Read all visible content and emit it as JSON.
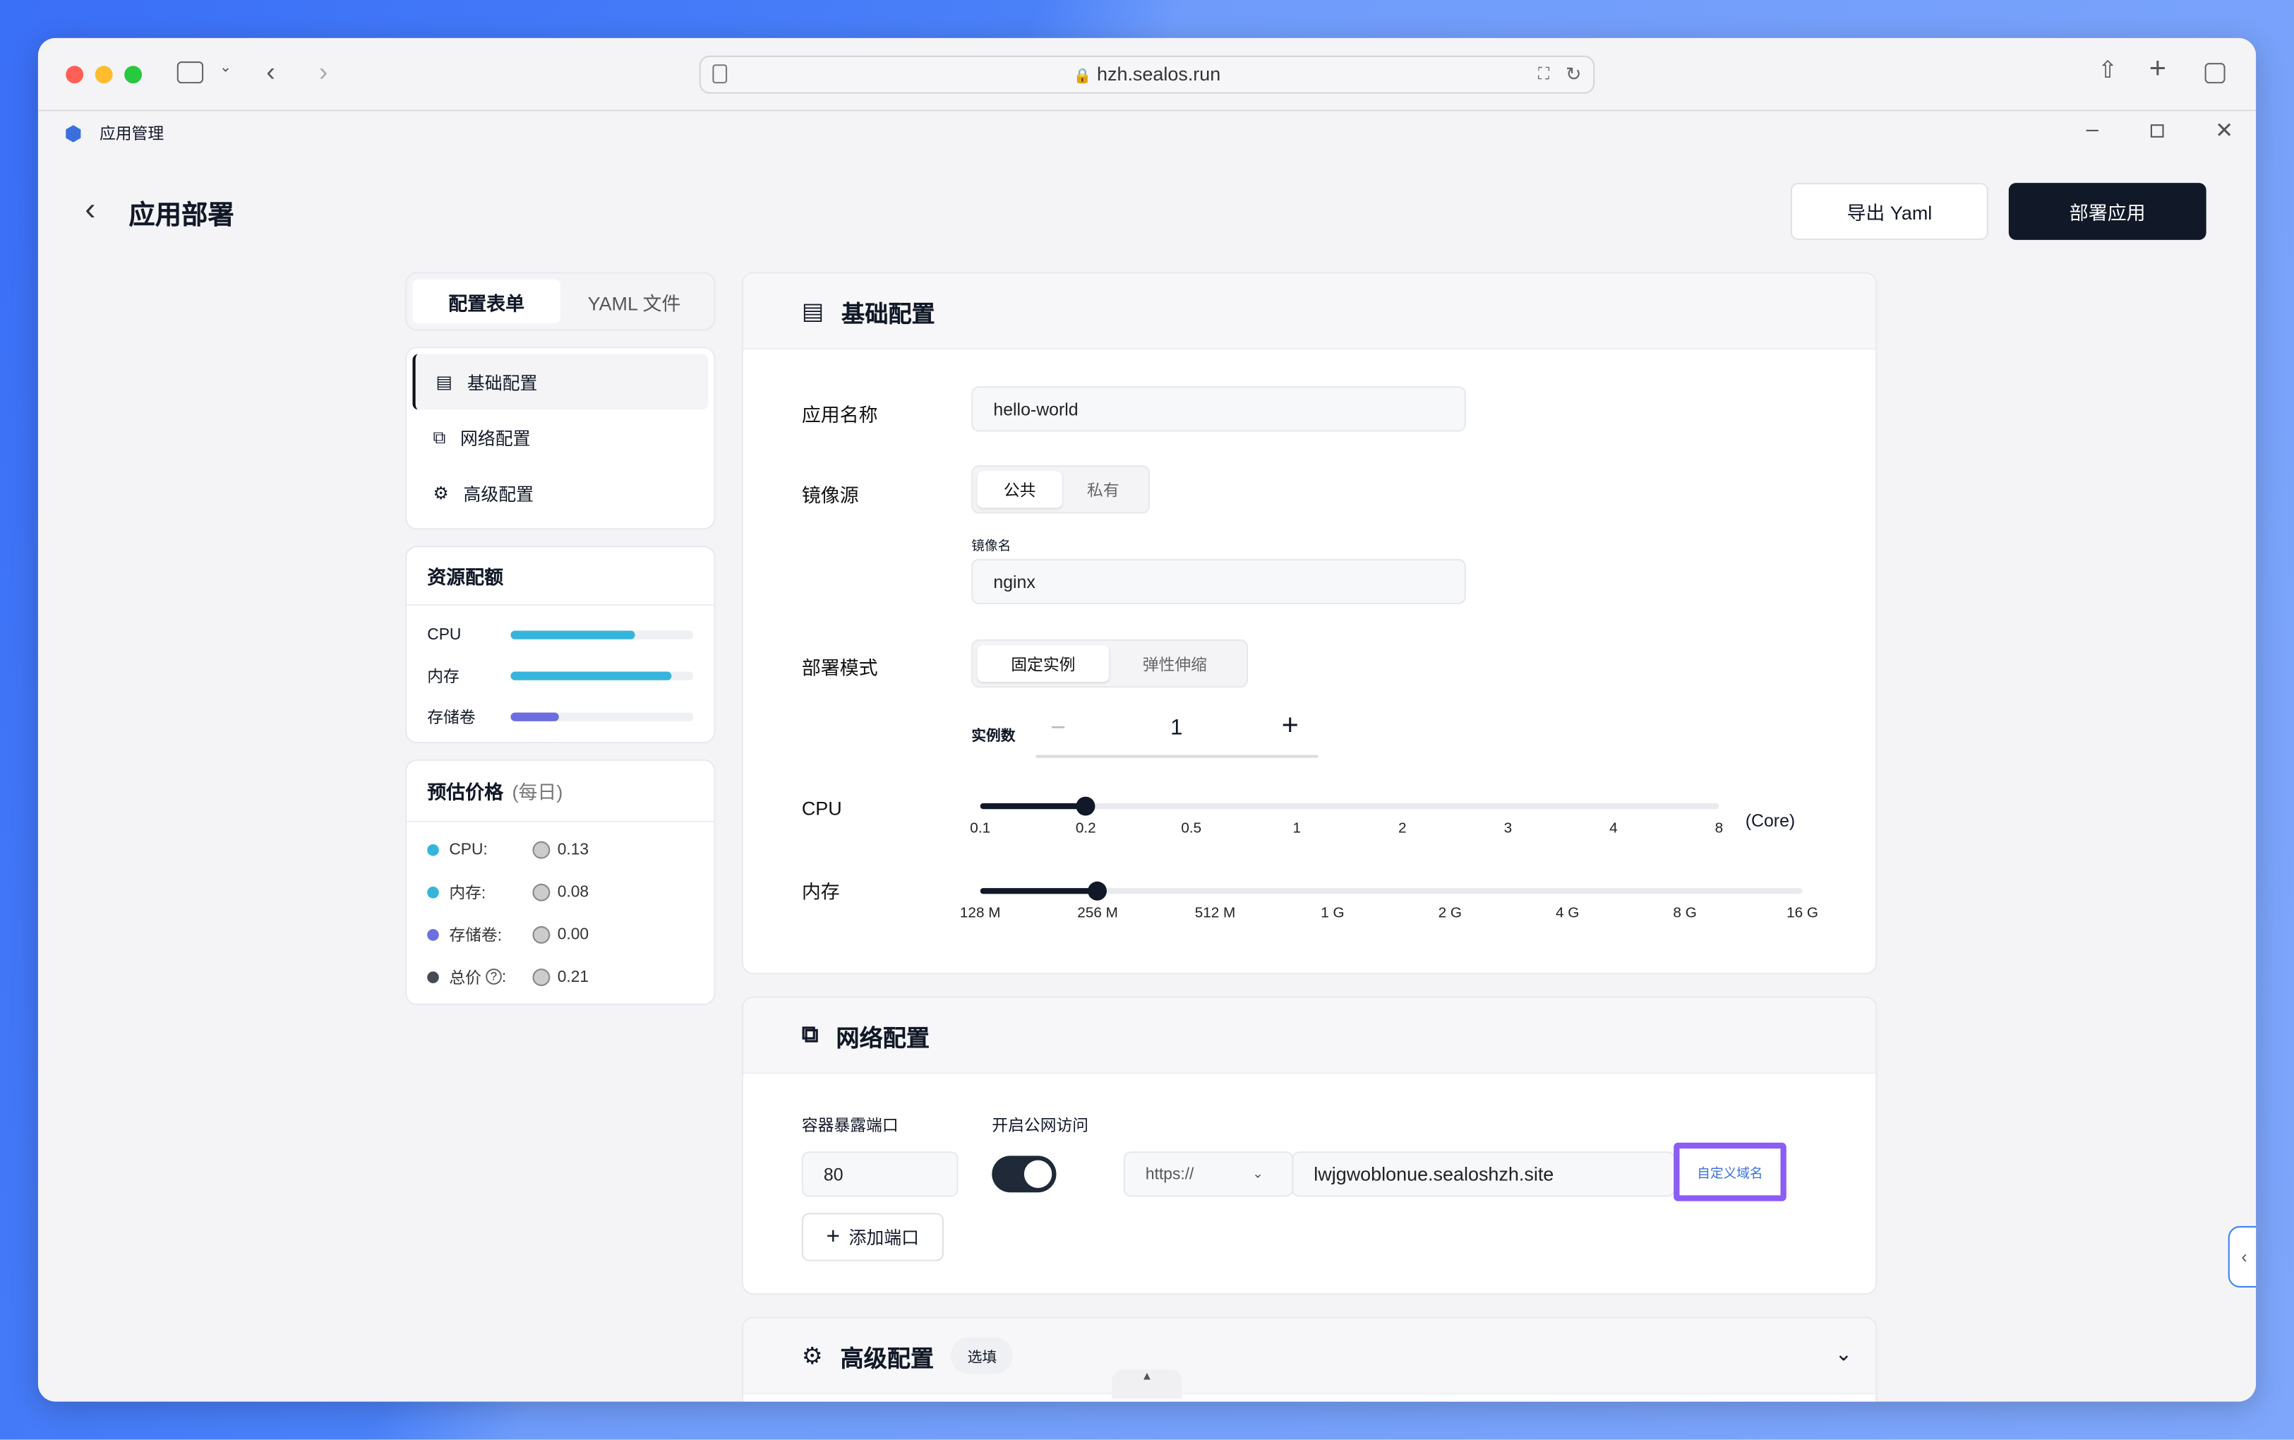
{
  "browser": {
    "url": "hzh.sealos.run",
    "icons": [
      "sidebar-icon",
      "chevron-down-icon",
      "back-icon",
      "forward-icon",
      "page-icon",
      "lock-icon",
      "translate-icon",
      "reload-icon",
      "share-icon",
      "plus-icon",
      "tabs-icon"
    ]
  },
  "app": {
    "title": "应用管理",
    "window_controls": [
      "minimize",
      "restore",
      "close"
    ]
  },
  "header": {
    "title": "应用部署",
    "export_label": "导出 Yaml",
    "deploy_label": "部署应用"
  },
  "left": {
    "tabs": [
      {
        "label": "配置表单",
        "active": true
      },
      {
        "label": "YAML 文件",
        "active": false
      }
    ],
    "nav": [
      {
        "label": "基础配置",
        "icon": "document-icon",
        "active": true
      },
      {
        "label": "网络配置",
        "icon": "network-icon"
      },
      {
        "label": "高级配置",
        "icon": "gear-icon"
      }
    ],
    "quota": {
      "title": "资源配额",
      "items": [
        {
          "label": "CPU",
          "percent": 68,
          "color": "#36b5dc"
        },
        {
          "label": "内存",
          "percent": 88,
          "color": "#36b5dc"
        },
        {
          "label": "存储卷",
          "percent": 26,
          "color": "#6c6ee0"
        }
      ]
    },
    "price": {
      "title": "预估价格",
      "subtitle": "(每日)",
      "items": [
        {
          "label": "CPU:",
          "value": "0.13",
          "color": "#36b5dc"
        },
        {
          "label": "内存:",
          "value": "0.08",
          "color": "#36b5dc"
        },
        {
          "label": "存储卷:",
          "value": "0.00",
          "color": "#6c6ee0"
        },
        {
          "label": "总价",
          "suffix": ":",
          "value": "0.21",
          "color": "#454a55"
        }
      ]
    }
  },
  "basic": {
    "title": "基础配置",
    "app_name_label": "应用名称",
    "app_name": "hello-world",
    "image_label": "镜像源",
    "image_options": [
      "公共",
      "私有"
    ],
    "image_name_label": "镜像名",
    "image_name": "nginx",
    "mode_label": "部署模式",
    "mode_options": [
      "固定实例",
      "弹性伸缩"
    ],
    "replicas_label": "实例数",
    "replicas": "1",
    "cpu": {
      "label": "CPU",
      "ticks": [
        "0.1",
        "0.2",
        "0.5",
        "1",
        "2",
        "3",
        "4",
        "8"
      ],
      "unit": "(Core)",
      "value": "0.2"
    },
    "memory": {
      "label": "内存",
      "ticks": [
        "128 M",
        "256 M",
        "512 M",
        "1 G",
        "2 G",
        "4 G",
        "8 G",
        "16 G"
      ],
      "value": "256 M"
    }
  },
  "network": {
    "title": "网络配置",
    "port_label": "容器暴露端口",
    "port": "80",
    "public_label": "开启公网访问",
    "public_enabled": true,
    "protocol": "https://",
    "domain": "lwjgwoblonue.sealoshzh.site",
    "custom_domain_label": "自定义域名",
    "add_port_label": "添加端口",
    "highlight_color": "#8b5cf6"
  },
  "advanced": {
    "title": "高级配置",
    "badge": "选填"
  }
}
